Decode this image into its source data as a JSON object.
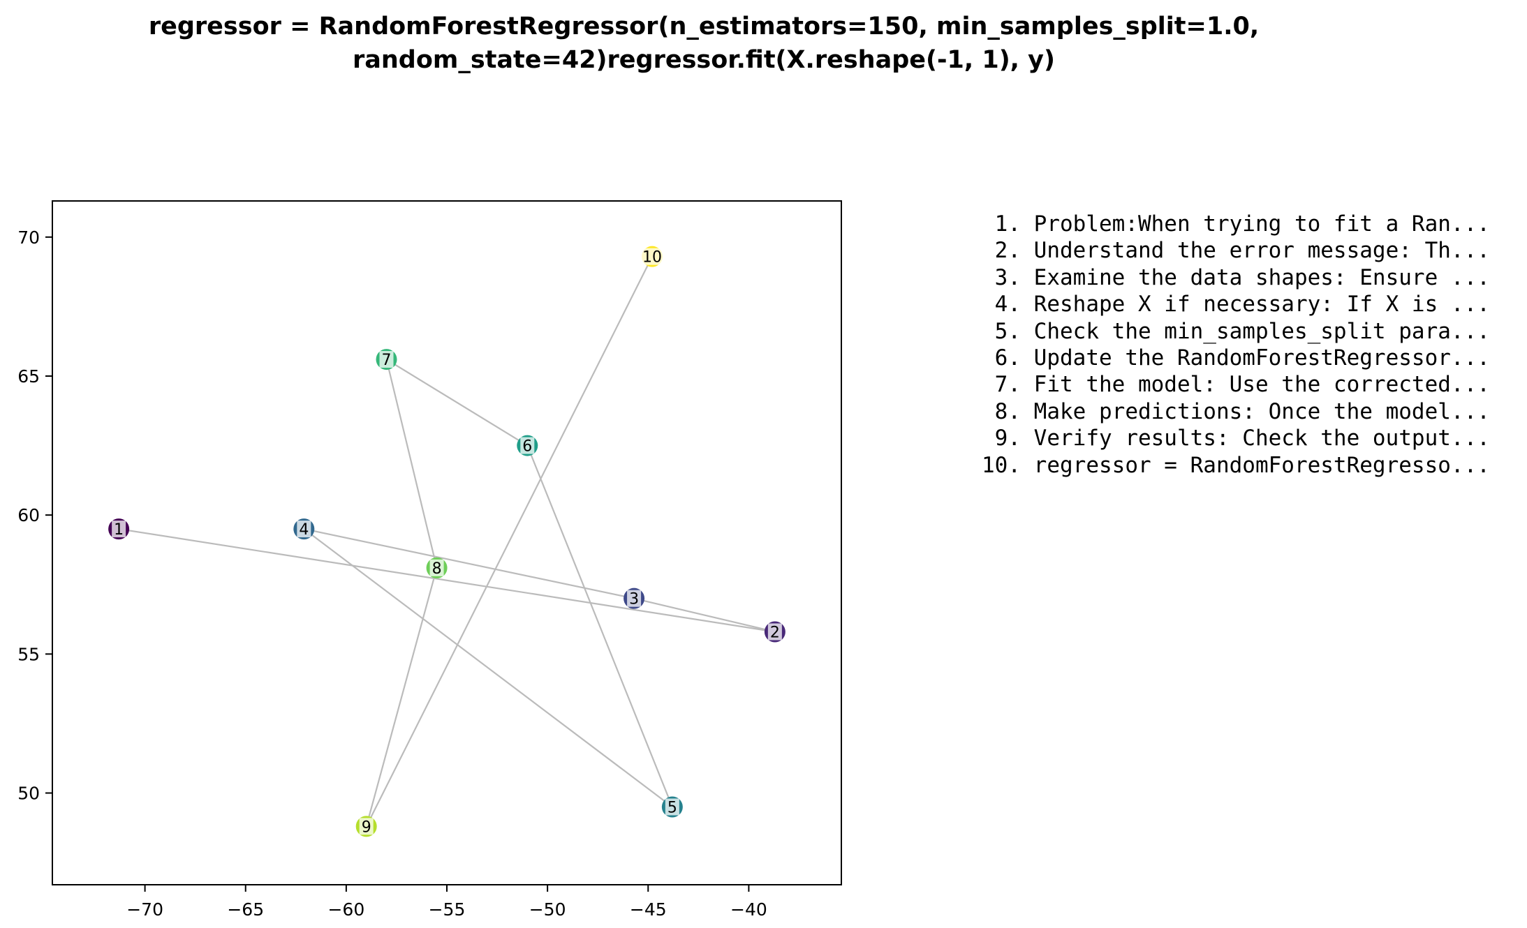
{
  "title_lines": [
    "regressor = RandomForestRegressor(n_estimators=150, min_samples_split=1.0,",
    "random_state=42)regressor.fit(X.reshape(-1, 1), y)"
  ],
  "chart_data": {
    "type": "scatter",
    "x": [
      -71.3,
      -38.7,
      -45.7,
      -62.1,
      -43.8,
      -51.0,
      -58.0,
      -55.5,
      -59.0,
      -44.8
    ],
    "y": [
      59.5,
      55.8,
      57.0,
      59.5,
      49.5,
      62.5,
      65.6,
      58.1,
      48.8,
      69.3
    ],
    "point_labels": [
      "1",
      "2",
      "3",
      "4",
      "5",
      "6",
      "7",
      "8",
      "9",
      "10"
    ],
    "colors": [
      "#440154",
      "#482878",
      "#3e4989",
      "#31688e",
      "#26828e",
      "#1f9e89",
      "#35b779",
      "#6ece58",
      "#b5de2b",
      "#fde725"
    ],
    "connect_in_order": true,
    "line_color": "#bbbbbb",
    "xlim": [
      -74.6,
      -35.4
    ],
    "ylim": [
      46.7,
      71.3
    ],
    "x_ticks": [
      -70,
      -65,
      -60,
      -55,
      -50,
      -45,
      -40
    ],
    "y_ticks": [
      50,
      55,
      60,
      65,
      70
    ],
    "x_tick_labels": [
      "−70",
      "−65",
      "−60",
      "−55",
      "−50",
      "−45",
      "−40"
    ],
    "y_tick_labels": [
      "50",
      "55",
      "60",
      "65",
      "70"
    ],
    "grid": false,
    "xlabel": "",
    "ylabel": ""
  },
  "steps": [
    {
      "num": "1.",
      "text": "Problem:When trying to fit a Ran..."
    },
    {
      "num": "2.",
      "text": "Understand the error message: Th..."
    },
    {
      "num": "3.",
      "text": "Examine the data shapes: Ensure ..."
    },
    {
      "num": "4.",
      "text": "Reshape X if necessary: If X is ..."
    },
    {
      "num": "5.",
      "text": "Check the min_samples_split para..."
    },
    {
      "num": "6.",
      "text": "Update the RandomForestRegressor..."
    },
    {
      "num": "7.",
      "text": "Fit the model: Use the corrected..."
    },
    {
      "num": "8.",
      "text": "Make predictions: Once the model..."
    },
    {
      "num": "9.",
      "text": "Verify results: Check the output..."
    },
    {
      "num": "10.",
      "text": "regressor = RandomForestRegresso..."
    }
  ]
}
